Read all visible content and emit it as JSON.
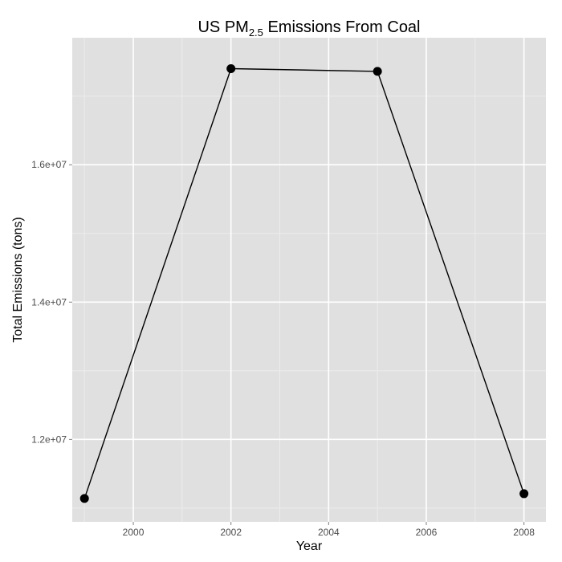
{
  "chart_data": {
    "type": "line",
    "title": "US PM",
    "title_subscript": "2.5",
    "title_suffix": " Emissions From Coal",
    "xlabel": "Year",
    "ylabel": "Total Emissions (tons)",
    "xlim": [
      1998.75,
      2008.45
    ],
    "ylim": [
      10800000,
      17850000
    ],
    "x_ticks": [
      2000,
      2002,
      2004,
      2006,
      2008
    ],
    "x_tick_labels": [
      "2000",
      "2002",
      "2004",
      "2006",
      "2008"
    ],
    "y_ticks": [
      12000000,
      14000000,
      16000000
    ],
    "y_tick_labels": [
      "1.2e+07",
      "1.4e+07",
      "1.6e+07"
    ],
    "grid": true,
    "colors": {
      "panel_background": "#e0e0e0",
      "grid_major": "#ffffff",
      "grid_minor": "#ececec",
      "line": "#000000",
      "point": "#000000"
    },
    "series": [
      {
        "x": [
          1999,
          2002,
          2005,
          2008
        ],
        "y": [
          11140000,
          17400000,
          17360000,
          11210000
        ]
      }
    ]
  }
}
